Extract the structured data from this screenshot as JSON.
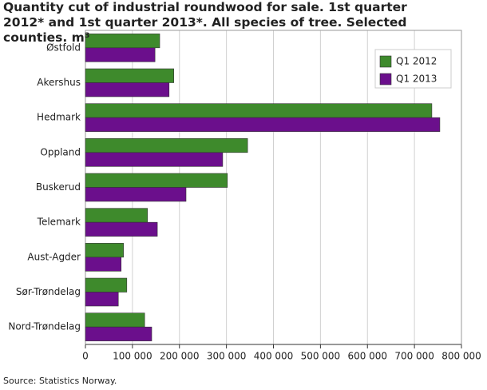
{
  "chart_data": {
    "type": "hbar",
    "title": "Quantity cut of industrial roundwood for sale. 1st quarter 2012* and 1st quarter 2013*. All species of tree. Selected counties. m³",
    "categories": [
      "Østfold",
      "Akershus",
      "Hedmark",
      "Oppland",
      "Buskerud",
      "Telemark",
      "Aust-Agder",
      "Sør-Trøndelag",
      "Nord-Trøndelag"
    ],
    "series": [
      {
        "name": "Q1 2012",
        "color": "#3e8a2c",
        "values": [
          158000,
          188000,
          737000,
          345000,
          302000,
          132000,
          81000,
          88000,
          126000
        ]
      },
      {
        "name": "Q1 2013",
        "color": "#6b0f8c",
        "values": [
          148000,
          178000,
          754000,
          292000,
          214000,
          153000,
          76000,
          70000,
          141000
        ]
      }
    ],
    "xlim": [
      0,
      800000
    ],
    "xticks": [
      0,
      {
        "value": 100000,
        "label": "100 000"
      },
      {
        "value": 200000,
        "label": "200 000"
      },
      {
        "value": 300000,
        "label": "300 000"
      },
      {
        "value": 400000,
        "label": "400 000"
      },
      {
        "value": 500000,
        "label": "500 000"
      },
      {
        "value": 600000,
        "label": "600 000"
      },
      {
        "value": 700000,
        "label": "700 000"
      },
      {
        "value": 800000,
        "label": "800 000"
      }
    ],
    "grid": true,
    "legend": "top-right",
    "source": "Source: Statistics Norway."
  }
}
